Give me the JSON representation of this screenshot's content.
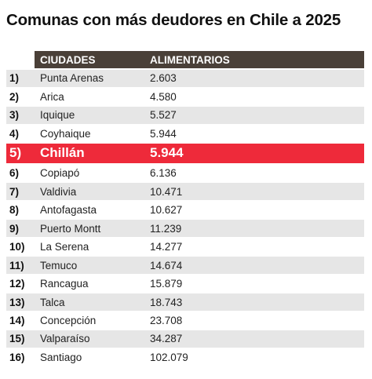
{
  "title": "Comunas con más deudores en Chile a 2025",
  "table": {
    "headers": {
      "city": "CIUDADES",
      "value": "ALIMENTARIOS"
    },
    "highlight_color": "#ee2a3a",
    "header_color": "#4a4038",
    "rows": [
      {
        "rank": "1)",
        "city": "Punta Arenas",
        "value": "2.603"
      },
      {
        "rank": "2)",
        "city": "Arica",
        "value": "4.580"
      },
      {
        "rank": "3)",
        "city": "Iquique",
        "value": "5.527"
      },
      {
        "rank": "4)",
        "city": "Coyhaique",
        "value": "5.944"
      },
      {
        "rank": "5)",
        "city": "Chillán",
        "value": "5.944",
        "highlight": true
      },
      {
        "rank": "6)",
        "city": "Copiapó",
        "value": "6.136"
      },
      {
        "rank": "7)",
        "city": "Valdivia",
        "value": "10.471"
      },
      {
        "rank": "8)",
        "city": "Antofagasta",
        "value": "10.627"
      },
      {
        "rank": "9)",
        "city": "Puerto Montt",
        "value": "11.239"
      },
      {
        "rank": "10)",
        "city": "La Serena",
        "value": "14.277"
      },
      {
        "rank": "11)",
        "city": "Temuco",
        "value": "14.674"
      },
      {
        "rank": "12)",
        "city": "Rancagua",
        "value": "15.879"
      },
      {
        "rank": "13)",
        "city": "Talca",
        "value": "18.743"
      },
      {
        "rank": "14)",
        "city": "Concepción",
        "value": "23.708"
      },
      {
        "rank": "15)",
        "city": "Valparaíso",
        "value": "34.287"
      },
      {
        "rank": "16)",
        "city": "Santiago",
        "value": "102.079"
      }
    ]
  }
}
